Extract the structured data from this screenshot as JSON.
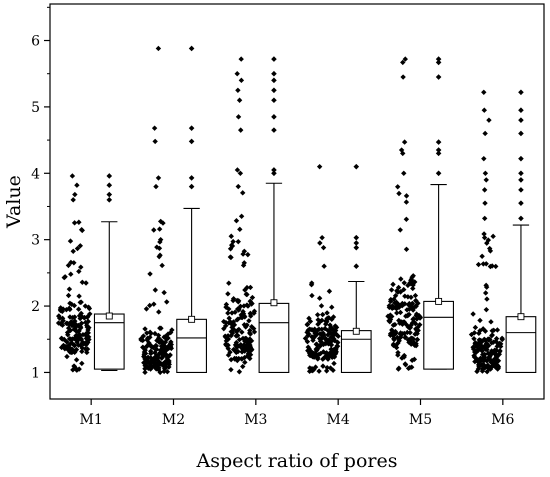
{
  "chart_data": {
    "type": "box",
    "title": "",
    "xlabel": "Aspect ratio of pores",
    "ylabel": "Value",
    "ylim": [
      0.6,
      6.55
    ],
    "yticks": [
      1,
      2,
      3,
      4,
      5,
      6
    ],
    "categories": [
      "M1",
      "M2",
      "M3",
      "M4",
      "M5",
      "M6"
    ],
    "series": [
      {
        "label": "M1",
        "box": {
          "q1": 1.05,
          "median": 1.75,
          "q3": 1.88,
          "mean": 1.85,
          "whisker_low": 1.03,
          "whisker_high": 3.27
        },
        "outliers": [
          3.6,
          3.68,
          3.82,
          3.96
        ],
        "points_summary": {
          "min": 1.03,
          "max": 3.96,
          "dense_range": [
            1.3,
            2.2
          ]
        }
      },
      {
        "label": "M2",
        "box": {
          "q1": 1.0,
          "median": 1.52,
          "q3": 1.8,
          "mean": 1.8,
          "whisker_low": 1.0,
          "whisker_high": 3.47
        },
        "outliers": [
          3.8,
          3.93,
          4.48,
          4.68,
          5.88
        ],
        "points_summary": {
          "min": 1.0,
          "max": 5.88,
          "dense_range": [
            1.05,
            1.7
          ]
        }
      },
      {
        "label": "M3",
        "box": {
          "q1": 1.0,
          "median": 1.75,
          "q3": 2.04,
          "mean": 2.05,
          "whisker_low": 1.0,
          "whisker_high": 3.85
        },
        "outliers": [
          4.0,
          4.05,
          4.65,
          4.85,
          5.1,
          5.25,
          5.4,
          5.5,
          5.72
        ],
        "points_summary": {
          "min": 1.0,
          "max": 5.72,
          "dense_range": [
            1.2,
            2.4
          ]
        }
      },
      {
        "label": "M4",
        "box": {
          "q1": 1.0,
          "median": 1.5,
          "q3": 1.63,
          "mean": 1.62,
          "whisker_low": 1.0,
          "whisker_high": 2.37
        },
        "outliers": [
          2.6,
          2.88,
          2.95,
          3.03,
          4.1
        ],
        "points_summary": {
          "min": 1.0,
          "max": 4.1,
          "dense_range": [
            1.2,
            1.9
          ]
        }
      },
      {
        "label": "M5",
        "box": {
          "q1": 1.05,
          "median": 1.83,
          "q3": 2.07,
          "mean": 2.07,
          "whisker_low": 1.05,
          "whisker_high": 3.83
        },
        "outliers": [
          4.0,
          4.3,
          4.35,
          4.47,
          5.45,
          5.67,
          5.72
        ],
        "points_summary": {
          "min": 1.05,
          "max": 5.72,
          "dense_range": [
            1.4,
            2.5
          ]
        }
      },
      {
        "label": "M6",
        "box": {
          "q1": 1.0,
          "median": 1.6,
          "q3": 1.84,
          "mean": 1.84,
          "whisker_low": 1.0,
          "whisker_high": 3.22
        },
        "outliers": [
          3.32,
          3.55,
          3.75,
          3.9,
          4.0,
          4.22,
          4.6,
          4.8,
          4.95,
          5.22
        ],
        "points_summary": {
          "min": 1.0,
          "max": 5.22,
          "dense_range": [
            1.05,
            1.8
          ]
        }
      }
    ],
    "grid": false,
    "legend": "none"
  }
}
